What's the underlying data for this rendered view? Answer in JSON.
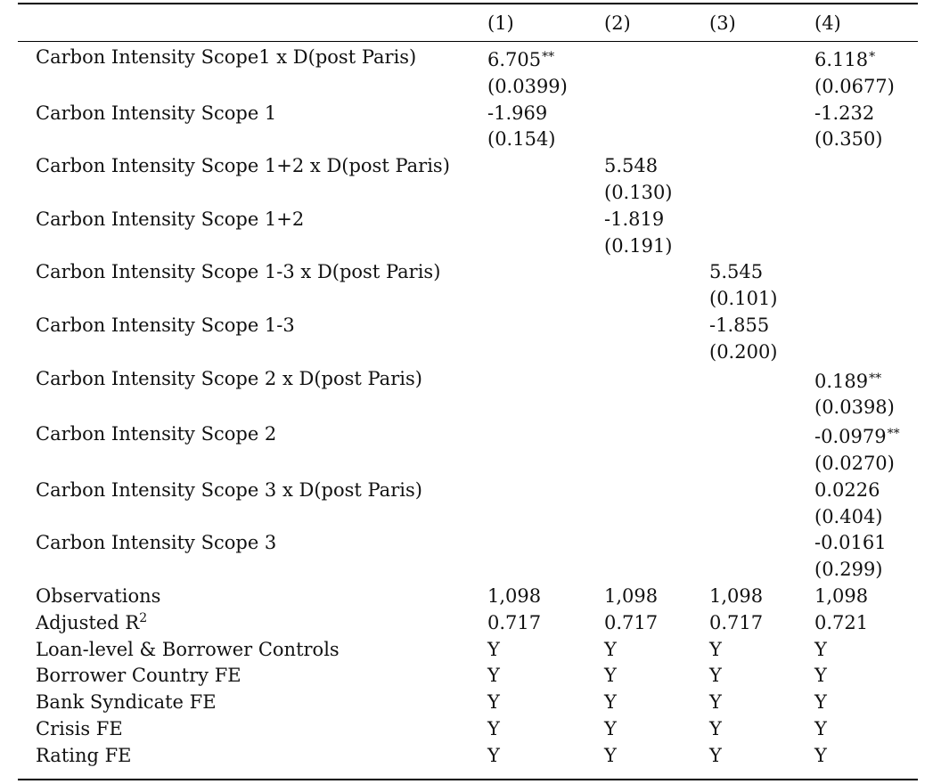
{
  "columns": [
    "(1)",
    "(2)",
    "(3)",
    "(4)"
  ],
  "rows": [
    {
      "label": "Carbon Intensity Scope1 x D(post Paris)",
      "cells": [
        {
          "v": "6.705",
          "s": "**"
        },
        {
          "v": "",
          "s": ""
        },
        {
          "v": "",
          "s": ""
        },
        {
          "v": "6.118",
          "s": "*"
        }
      ]
    },
    {
      "label": "",
      "cells": [
        {
          "v": "(0.0399)",
          "s": ""
        },
        {
          "v": "",
          "s": ""
        },
        {
          "v": "",
          "s": ""
        },
        {
          "v": "(0.0677)",
          "s": ""
        }
      ]
    },
    {
      "label": "Carbon Intensity Scope 1",
      "cells": [
        {
          "v": "-1.969",
          "s": ""
        },
        {
          "v": "",
          "s": ""
        },
        {
          "v": "",
          "s": ""
        },
        {
          "v": "-1.232",
          "s": ""
        }
      ]
    },
    {
      "label": "",
      "cells": [
        {
          "v": "(0.154)",
          "s": ""
        },
        {
          "v": "",
          "s": ""
        },
        {
          "v": "",
          "s": ""
        },
        {
          "v": "(0.350)",
          "s": ""
        }
      ]
    },
    {
      "label": "Carbon Intensity Scope 1+2 x D(post Paris)",
      "cells": [
        {
          "v": "",
          "s": ""
        },
        {
          "v": "5.548",
          "s": ""
        },
        {
          "v": "",
          "s": ""
        },
        {
          "v": "",
          "s": ""
        }
      ]
    },
    {
      "label": "",
      "cells": [
        {
          "v": "",
          "s": ""
        },
        {
          "v": "(0.130)",
          "s": ""
        },
        {
          "v": "",
          "s": ""
        },
        {
          "v": "",
          "s": ""
        }
      ]
    },
    {
      "label": "Carbon Intensity Scope 1+2",
      "cells": [
        {
          "v": "",
          "s": ""
        },
        {
          "v": "-1.819",
          "s": ""
        },
        {
          "v": "",
          "s": ""
        },
        {
          "v": "",
          "s": ""
        }
      ]
    },
    {
      "label": "",
      "cells": [
        {
          "v": "",
          "s": ""
        },
        {
          "v": "(0.191)",
          "s": ""
        },
        {
          "v": "",
          "s": ""
        },
        {
          "v": "",
          "s": ""
        }
      ]
    },
    {
      "label": "Carbon Intensity Scope 1-3 x D(post Paris)",
      "cells": [
        {
          "v": "",
          "s": ""
        },
        {
          "v": "",
          "s": ""
        },
        {
          "v": "5.545",
          "s": ""
        },
        {
          "v": "",
          "s": ""
        }
      ]
    },
    {
      "label": "",
      "cells": [
        {
          "v": "",
          "s": ""
        },
        {
          "v": "",
          "s": ""
        },
        {
          "v": "(0.101)",
          "s": ""
        },
        {
          "v": "",
          "s": ""
        }
      ]
    },
    {
      "label": "Carbon Intensity Scope 1-3",
      "cells": [
        {
          "v": "",
          "s": ""
        },
        {
          "v": "",
          "s": ""
        },
        {
          "v": "-1.855",
          "s": ""
        },
        {
          "v": "",
          "s": ""
        }
      ]
    },
    {
      "label": "",
      "cells": [
        {
          "v": "",
          "s": ""
        },
        {
          "v": "",
          "s": ""
        },
        {
          "v": "(0.200)",
          "s": ""
        },
        {
          "v": "",
          "s": ""
        }
      ]
    },
    {
      "label": "Carbon Intensity Scope 2 x D(post Paris)",
      "cells": [
        {
          "v": "",
          "s": ""
        },
        {
          "v": "",
          "s": ""
        },
        {
          "v": "",
          "s": ""
        },
        {
          "v": "0.189",
          "s": "**"
        }
      ]
    },
    {
      "label": "",
      "cells": [
        {
          "v": "",
          "s": ""
        },
        {
          "v": "",
          "s": ""
        },
        {
          "v": "",
          "s": ""
        },
        {
          "v": "(0.0398)",
          "s": ""
        }
      ]
    },
    {
      "label": "Carbon Intensity Scope 2",
      "cells": [
        {
          "v": "",
          "s": ""
        },
        {
          "v": "",
          "s": ""
        },
        {
          "v": "",
          "s": ""
        },
        {
          "v": "-0.0979",
          "s": "**"
        }
      ]
    },
    {
      "label": "",
      "cells": [
        {
          "v": "",
          "s": ""
        },
        {
          "v": "",
          "s": ""
        },
        {
          "v": "",
          "s": ""
        },
        {
          "v": "(0.0270)",
          "s": ""
        }
      ]
    },
    {
      "label": "Carbon Intensity Scope 3 x D(post Paris)",
      "cells": [
        {
          "v": "",
          "s": ""
        },
        {
          "v": "",
          "s": ""
        },
        {
          "v": "",
          "s": ""
        },
        {
          "v": "0.0226",
          "s": ""
        }
      ]
    },
    {
      "label": "",
      "cells": [
        {
          "v": "",
          "s": ""
        },
        {
          "v": "",
          "s": ""
        },
        {
          "v": "",
          "s": ""
        },
        {
          "v": "(0.404)",
          "s": ""
        }
      ]
    },
    {
      "label": "Carbon Intensity Scope 3",
      "cells": [
        {
          "v": "",
          "s": ""
        },
        {
          "v": "",
          "s": ""
        },
        {
          "v": "",
          "s": ""
        },
        {
          "v": "-0.0161",
          "s": ""
        }
      ]
    },
    {
      "label": "",
      "cells": [
        {
          "v": "",
          "s": ""
        },
        {
          "v": "",
          "s": ""
        },
        {
          "v": "",
          "s": ""
        },
        {
          "v": "(0.299)",
          "s": ""
        }
      ]
    },
    {
      "label": "Observations",
      "cells": [
        {
          "v": "1,098",
          "s": ""
        },
        {
          "v": "1,098",
          "s": ""
        },
        {
          "v": "1,098",
          "s": ""
        },
        {
          "v": "1,098",
          "s": ""
        }
      ]
    },
    {
      "label": "Adjusted R",
      "sup": "2",
      "cells": [
        {
          "v": "0.717",
          "s": ""
        },
        {
          "v": "0.717",
          "s": ""
        },
        {
          "v": "0.717",
          "s": ""
        },
        {
          "v": "0.721",
          "s": ""
        }
      ]
    },
    {
      "label": "Loan-level & Borrower Controls",
      "cells": [
        {
          "v": "Y",
          "s": ""
        },
        {
          "v": "Y",
          "s": ""
        },
        {
          "v": "Y",
          "s": ""
        },
        {
          "v": "Y",
          "s": ""
        }
      ]
    },
    {
      "label": "Borrower Country FE",
      "cells": [
        {
          "v": "Y",
          "s": ""
        },
        {
          "v": "Y",
          "s": ""
        },
        {
          "v": "Y",
          "s": ""
        },
        {
          "v": "Y",
          "s": ""
        }
      ]
    },
    {
      "label": "Bank Syndicate FE",
      "cells": [
        {
          "v": "Y",
          "s": ""
        },
        {
          "v": "Y",
          "s": ""
        },
        {
          "v": "Y",
          "s": ""
        },
        {
          "v": "Y",
          "s": ""
        }
      ]
    },
    {
      "label": "Crisis FE",
      "cells": [
        {
          "v": "Y",
          "s": ""
        },
        {
          "v": "Y",
          "s": ""
        },
        {
          "v": "Y",
          "s": ""
        },
        {
          "v": "Y",
          "s": ""
        }
      ]
    },
    {
      "label": "Rating FE",
      "cells": [
        {
          "v": "Y",
          "s": ""
        },
        {
          "v": "Y",
          "s": ""
        },
        {
          "v": "Y",
          "s": ""
        },
        {
          "v": "Y",
          "s": ""
        }
      ]
    }
  ]
}
